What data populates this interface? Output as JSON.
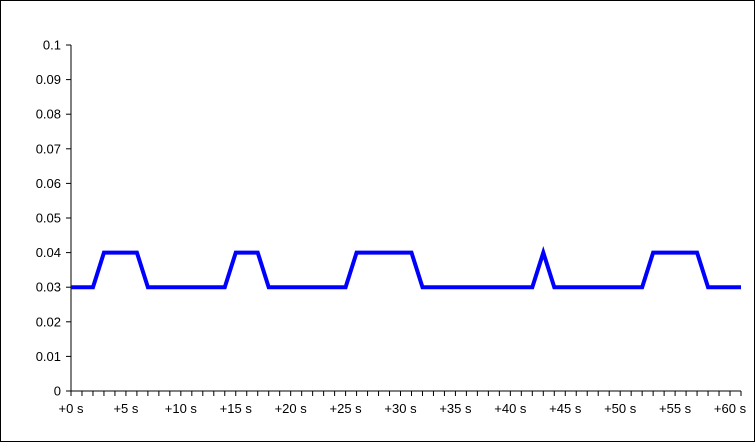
{
  "chart_data": {
    "type": "line",
    "title": "",
    "xlabel": "",
    "ylabel": "",
    "x_unit": "s",
    "x_tick_labels": [
      "+0 s",
      "+5 s",
      "+10 s",
      "+15 s",
      "+20 s",
      "+25 s",
      "+30 s",
      "+35 s",
      "+40 s",
      "+45 s",
      "+50 s",
      "+55 s",
      "+60 s"
    ],
    "y_tick_labels": [
      "0",
      "0.01",
      "0.02",
      "0.03",
      "0.04",
      "0.05",
      "0.06",
      "0.07",
      "0.08",
      "0.09",
      "0.1"
    ],
    "xlim": [
      0,
      61
    ],
    "ylim": [
      0,
      0.1
    ],
    "grid": false,
    "legend": "none",
    "series": [
      {
        "color": "#0000ff",
        "x": [
          0,
          2,
          3,
          6,
          7,
          14,
          15,
          17,
          18,
          25,
          26,
          31,
          32,
          42,
          43,
          44,
          52,
          53,
          57,
          58,
          61
        ],
        "y": [
          0.03,
          0.03,
          0.04,
          0.04,
          0.03,
          0.03,
          0.04,
          0.04,
          0.03,
          0.03,
          0.04,
          0.04,
          0.03,
          0.03,
          0.04,
          0.03,
          0.03,
          0.04,
          0.04,
          0.03,
          0.03
        ]
      }
    ]
  }
}
